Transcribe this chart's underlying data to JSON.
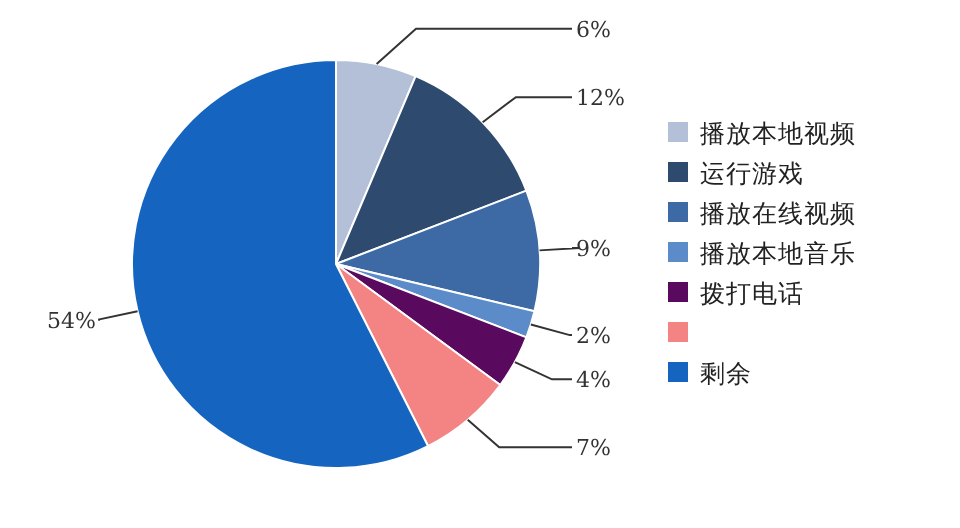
{
  "chart_data": {
    "type": "pie",
    "categories": [
      "播放本地视频",
      "运行游戏",
      "播放在线视频",
      "播放本地音乐",
      "拨打电话",
      null,
      "剩余"
    ],
    "values": [
      6,
      12,
      9,
      2,
      4,
      7,
      54
    ],
    "value_labels": [
      "6%",
      "12%",
      "9%",
      "2%",
      "4%",
      "7%",
      "54%"
    ],
    "colors": [
      "#b4c0d8",
      "#2e4a6e",
      "#3d6aa4",
      "#5b8bc9",
      "#5a0a5e",
      "#f48484",
      "#1565c0"
    ],
    "legend": "right"
  }
}
